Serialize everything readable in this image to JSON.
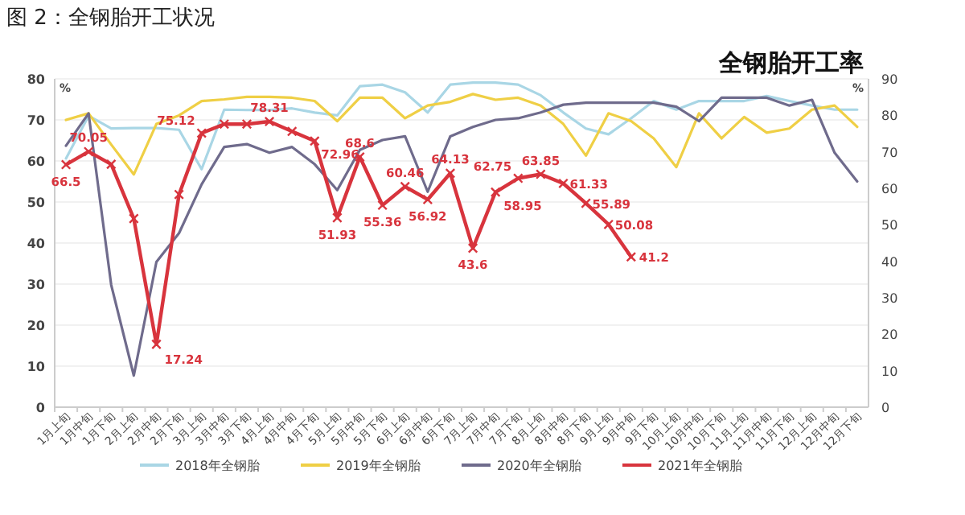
{
  "chart_data": {
    "type": "line",
    "title": "图 2：全钢胎开工状况",
    "subtitle": "全钢胎开工率",
    "ylabel": "%",
    "y2label": "%",
    "categories": [
      "1月上旬",
      "1月中旬",
      "1月下旬",
      "2月上旬",
      "2月中旬",
      "2月下旬",
      "3月上旬",
      "3月中旬",
      "3月下旬",
      "4月上旬",
      "4月中旬",
      "4月下旬",
      "5月上旬",
      "5月中旬",
      "5月下旬",
      "6月上旬",
      "6月中旬",
      "6月下旬",
      "7月上旬",
      "7月中旬",
      "7月下旬",
      "8月上旬",
      "8月中旬",
      "8月下旬",
      "9月上旬",
      "9月中旬",
      "9月下旬",
      "10月上旬",
      "10月中旬",
      "10月下旬",
      "11月上旬",
      "11月中旬",
      "11月下旬",
      "12月上旬",
      "12月中旬",
      "12月下旬"
    ],
    "series": [
      {
        "name": "2018年全钢胎",
        "color": "#a9d6e5",
        "values": [
          60.6,
          71,
          67.9,
          68,
          68,
          67.6,
          58,
          72.5,
          72.4,
          72.4,
          72.8,
          71.8,
          71.1,
          78.2,
          78.6,
          76.7,
          71.8,
          78.6,
          79.1,
          79.1,
          78.6,
          76,
          71.8,
          67.9,
          66.5,
          70.4,
          74.6,
          72.5,
          74.6,
          74.6,
          74.6,
          75.8,
          74.6,
          73.5,
          72.5,
          72.5
        ]
      },
      {
        "name": "2019年全钢胎",
        "color": "#efcf45",
        "values": [
          70,
          71.6,
          64,
          56.7,
          69,
          71.1,
          74.6,
          75,
          75.6,
          75.6,
          75.4,
          74.6,
          69.7,
          75.4,
          75.4,
          70.4,
          73.5,
          74.4,
          76.3,
          74.9,
          75.4,
          73.5,
          69,
          61.3,
          71.6,
          69.7,
          65.5,
          58.5,
          71.6,
          65.5,
          70.7,
          66.9,
          67.9,
          72.5,
          73.5,
          68.3
        ]
      },
      {
        "name": "2020年全钢胎",
        "color": "#6f6b8c",
        "values": [
          63.7,
          71.6,
          29.8,
          7.7,
          35.4,
          42.4,
          54.3,
          63.4,
          64.1,
          62,
          63.4,
          59.2,
          52.9,
          62.7,
          65.1,
          66,
          52.5,
          66,
          68.3,
          70,
          70.4,
          71.8,
          73.7,
          74.2,
          74.2,
          74.2,
          74.2,
          73.2,
          69.7,
          75.4,
          75.4,
          75.4,
          73.5,
          74.9,
          62,
          55
        ]
      },
      {
        "name": "2021年全钢胎",
        "color": "#d8343d",
        "axis": "y2",
        "marker": "cross",
        "values": [
          66.5,
          70.05,
          66.6,
          51.7,
          17.24,
          58.3,
          75.12,
          77.6,
          77.6,
          78.31,
          75.6,
          72.96,
          51.93,
          68.6,
          55.36,
          60.46,
          56.92,
          64.13,
          43.6,
          58.95,
          62.75,
          63.85,
          61.33,
          55.89,
          50.08,
          41.2,
          null,
          null,
          null,
          null,
          null,
          null,
          null,
          null,
          null,
          null
        ],
        "value_labels": [
          "66.5",
          "70.05",
          null,
          null,
          "17.24",
          null,
          "75.12",
          null,
          null,
          "78.31",
          null,
          "72.96",
          "51.93",
          "68.6",
          "55.36",
          "60.46",
          "56.92",
          "64.13",
          "43.6",
          "58.95",
          "62.75",
          "63.85",
          "61.33",
          "55.89",
          "50.08",
          "41.2",
          null,
          null,
          null,
          null,
          null,
          null,
          null,
          null,
          null,
          null
        ]
      }
    ],
    "ylim": [
      0,
      80
    ],
    "yticks": [
      0,
      10,
      20,
      30,
      40,
      50,
      60,
      70,
      80
    ],
    "y2lim": [
      0,
      90
    ],
    "y2ticks": [
      0,
      10,
      20,
      30,
      40,
      50,
      60,
      70,
      80,
      90
    ],
    "grid": "y",
    "legend": "bottom"
  }
}
